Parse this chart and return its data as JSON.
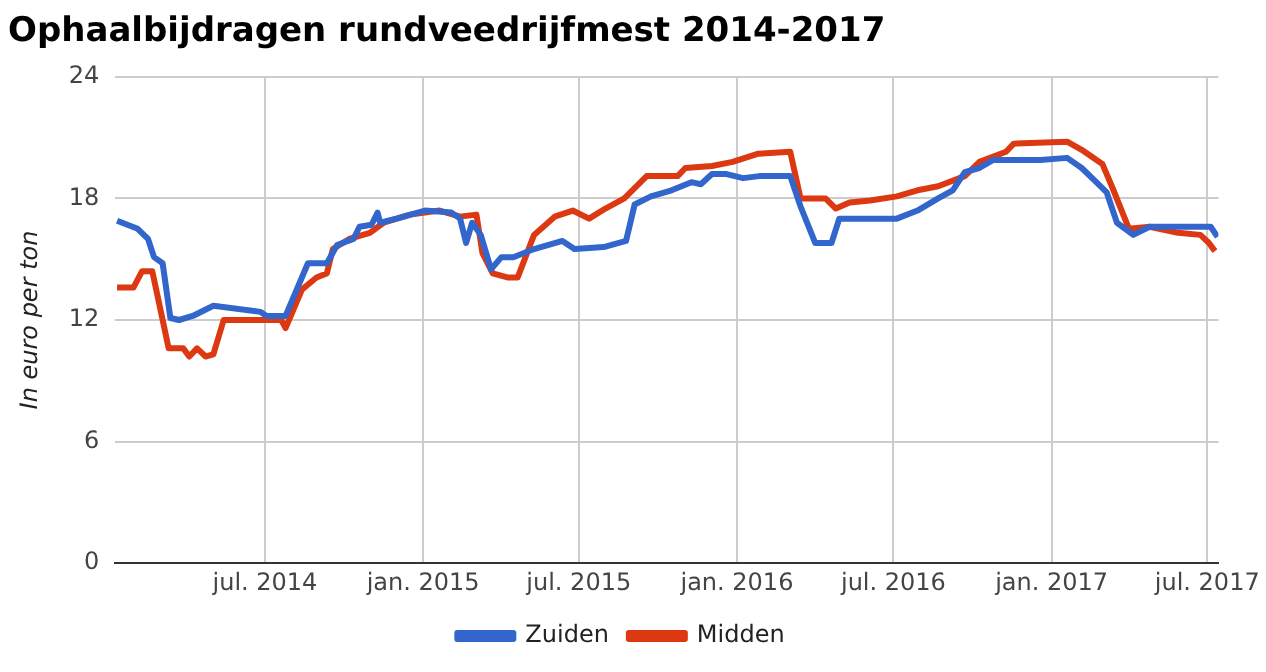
{
  "chart_data": {
    "type": "line",
    "title": "Ophaalbijdragen rundveedrijfmest 2014-2017",
    "ylabel": "In euro per ton",
    "xlim": [
      "2014-01-08",
      "2017-07-14"
    ],
    "xticks": [
      {
        "value": "2014-07-01",
        "label": "jul. 2014"
      },
      {
        "value": "2015-01-01",
        "label": "jan. 2015"
      },
      {
        "value": "2015-07-01",
        "label": "jul. 2015"
      },
      {
        "value": "2016-01-01",
        "label": "jan. 2016"
      },
      {
        "value": "2016-07-01",
        "label": "jul. 2016"
      },
      {
        "value": "2017-01-01",
        "label": "jan. 2017"
      },
      {
        "value": "2017-07-01",
        "label": "jul. 2017"
      }
    ],
    "ylim": [
      0,
      24
    ],
    "yticks": [
      0,
      6,
      12,
      18,
      24
    ],
    "grid": true,
    "legend": "bottom",
    "marker": "none",
    "line_style": "solid",
    "series": [
      {
        "name": "Zuiden",
        "color": "#3366cc",
        "x": [
          "2014-01-10",
          "2014-02-03",
          "2014-02-15",
          "2014-02-22",
          "2014-03-04",
          "2014-03-13",
          "2014-03-23",
          "2014-04-08",
          "2014-05-02",
          "2014-06-26",
          "2014-07-03",
          "2014-07-25",
          "2014-08-20",
          "2014-09-11",
          "2014-09-23",
          "2014-10-12",
          "2014-10-19",
          "2014-11-02",
          "2014-11-09",
          "2014-11-12",
          "2014-12-01",
          "2015-01-03",
          "2015-02-03",
          "2015-02-13",
          "2015-02-20",
          "2015-02-27",
          "2015-03-09",
          "2015-03-21",
          "2015-04-02",
          "2015-04-16",
          "2015-05-10",
          "2015-06-12",
          "2015-06-26",
          "2015-07-30",
          "2015-08-25",
          "2015-09-04",
          "2015-09-23",
          "2015-10-17",
          "2015-11-09",
          "2015-11-20",
          "2015-12-03",
          "2015-12-20",
          "2016-01-08",
          "2016-01-27",
          "2016-03-03",
          "2016-03-15",
          "2016-04-01",
          "2016-04-20",
          "2016-04-29",
          "2016-07-05",
          "2016-07-29",
          "2016-08-22",
          "2016-09-08",
          "2016-09-22",
          "2016-10-09",
          "2016-10-25",
          "2016-12-19",
          "2017-01-19",
          "2017-02-05",
          "2017-02-22",
          "2017-03-06",
          "2017-03-18",
          "2017-04-06",
          "2017-04-25",
          "2017-07-05",
          "2017-07-13"
        ],
        "values": [
          16.9,
          16.5,
          16.0,
          15.1,
          14.8,
          12.1,
          12.0,
          12.2,
          12.7,
          12.4,
          12.2,
          12.2,
          14.8,
          14.8,
          15.7,
          16.0,
          16.6,
          16.7,
          17.3,
          16.8,
          17.0,
          17.4,
          17.3,
          17.0,
          15.8,
          16.8,
          16.2,
          14.5,
          15.1,
          15.1,
          15.5,
          15.9,
          15.5,
          15.6,
          15.9,
          17.7,
          18.1,
          18.4,
          18.8,
          18.7,
          19.2,
          19.2,
          19.0,
          19.1,
          19.1,
          17.6,
          15.8,
          15.8,
          17.0,
          17.0,
          17.4,
          18.0,
          18.4,
          19.3,
          19.5,
          19.9,
          19.9,
          20.0,
          19.5,
          18.8,
          18.3,
          16.8,
          16.2,
          16.6,
          16.6,
          16.1
        ]
      },
      {
        "name": "Midden",
        "color": "#dc3912",
        "x": [
          "2014-01-10",
          "2014-01-29",
          "2014-02-08",
          "2014-02-20",
          "2014-02-27",
          "2014-03-11",
          "2014-03-28",
          "2014-04-04",
          "2014-04-13",
          "2014-04-23",
          "2014-05-02",
          "2014-05-14",
          "2014-07-20",
          "2014-07-25",
          "2014-08-13",
          "2014-08-30",
          "2014-09-11",
          "2014-09-18",
          "2014-10-07",
          "2014-10-31",
          "2014-11-16",
          "2014-12-17",
          "2015-01-20",
          "2015-02-13",
          "2015-03-04",
          "2015-03-11",
          "2015-03-23",
          "2015-04-09",
          "2015-04-21",
          "2015-05-10",
          "2015-06-03",
          "2015-06-24",
          "2015-07-13",
          "2015-08-01",
          "2015-08-23",
          "2015-09-18",
          "2015-10-24",
          "2015-11-02",
          "2015-12-03",
          "2015-12-27",
          "2016-01-25",
          "2016-03-03",
          "2016-03-15",
          "2016-04-13",
          "2016-04-25",
          "2016-05-11",
          "2016-06-04",
          "2016-07-05",
          "2016-07-29",
          "2016-08-22",
          "2016-09-22",
          "2016-10-09",
          "2016-11-09",
          "2016-11-18",
          "2017-01-19",
          "2017-02-05",
          "2017-03-01",
          "2017-03-13",
          "2017-04-01",
          "2017-04-25",
          "2017-05-28",
          "2017-06-23",
          "2017-07-03",
          "2017-07-10"
        ],
        "values": [
          13.6,
          13.6,
          14.4,
          14.4,
          13.0,
          10.6,
          10.6,
          10.2,
          10.6,
          10.2,
          10.3,
          12.0,
          12.0,
          11.6,
          13.5,
          14.1,
          14.3,
          15.5,
          16.0,
          16.3,
          16.8,
          17.2,
          17.4,
          17.1,
          17.2,
          15.3,
          14.3,
          14.1,
          14.1,
          16.2,
          17.1,
          17.4,
          17.0,
          17.5,
          18.0,
          19.1,
          19.1,
          19.5,
          19.6,
          19.8,
          20.2,
          20.3,
          18.0,
          18.0,
          17.5,
          17.8,
          17.9,
          18.1,
          18.4,
          18.6,
          19.1,
          19.8,
          20.3,
          20.7,
          20.8,
          20.4,
          19.7,
          18.5,
          16.5,
          16.6,
          16.3,
          16.2,
          15.8,
          15.4
        ]
      }
    ]
  }
}
